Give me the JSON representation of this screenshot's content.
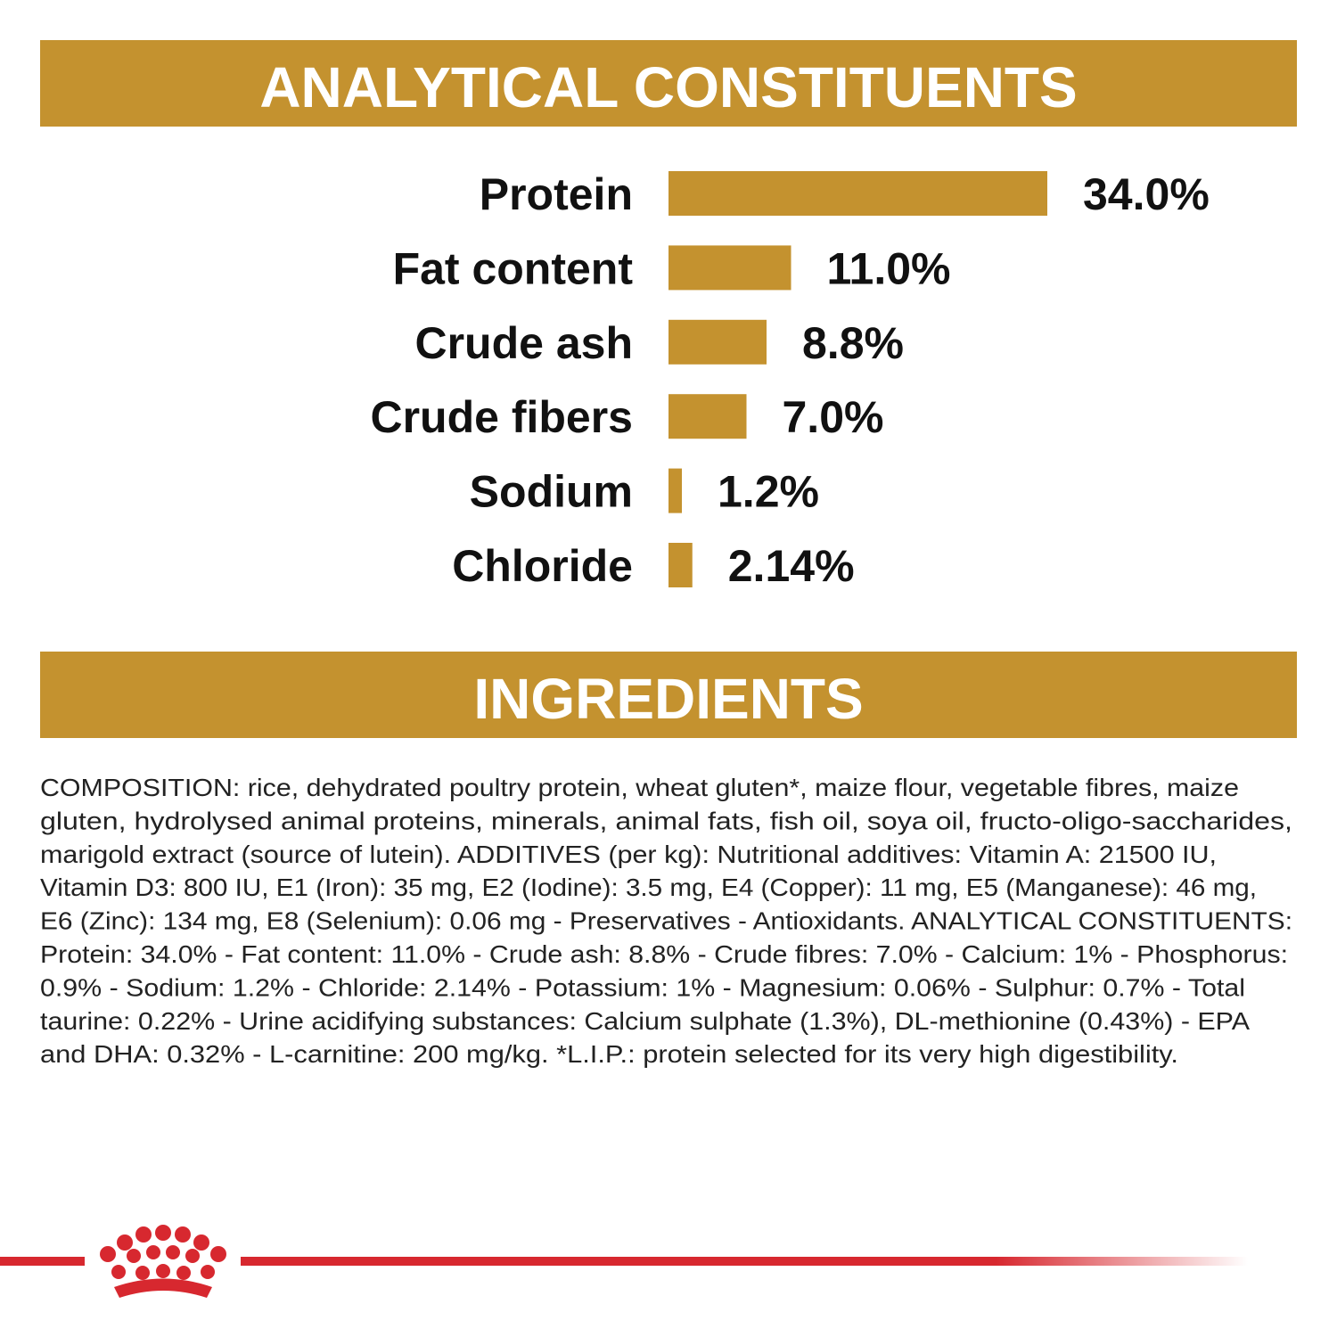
{
  "chart_data": {
    "type": "bar",
    "title": "ANALYTICAL CONSTITUENTS",
    "categories": [
      "Protein",
      "Fat content",
      "Crude ash",
      "Crude fibers",
      "Sodium",
      "Chloride"
    ],
    "values": [
      34.0,
      11.0,
      8.8,
      7.0,
      1.2,
      2.14
    ],
    "value_labels": [
      "34.0%",
      "11.0%",
      "8.8%",
      "7.0%",
      "1.2%",
      "2.14%"
    ],
    "color": "#c4922f"
  },
  "ingredients": {
    "title": "INGREDIENTS",
    "lines": [
      "COMPOSITION: rice, dehydrated poultry protein, wheat gluten*, maize flour, vegetable fibres, maize",
      "gluten, hydrolysed animal proteins, minerals, animal fats, fish oil, soya oil, fructo-oligo-saccharides,",
      "marigold extract (source of lutein). ADDITIVES (per kg): Nutritional additives: Vitamin A: 21500 IU,",
      "Vitamin D3: 800 IU, E1 (Iron): 35 mg, E2 (Iodine): 3.5 mg, E4 (Copper): 11 mg, E5 (Manganese): 46 mg,",
      "E6 (Zinc): 134 mg, E8 (Selenium): 0.06 mg - Preservatives - Antioxidants. ANALYTICAL CONSTITUENTS:",
      "Protein: 34.0% - Fat content: 11.0% - Crude ash: 8.8% - Crude fibres: 7.0% - Calcium: 1% - Phosphorus:",
      "0.9% - Sodium: 1.2% - Chloride: 2.14% - Potassium: 1% - Magnesium: 0.06% - Sulphur: 0.7% - Total",
      "taurine: 0.22% - Urine acidifying substances: Calcium sulphate (1.3%), DL-methionine (0.43%) - EPA",
      "and DHA: 0.32% - L-carnitine: 200 mg/kg. *L.I.P.: protein selected for its very high digestibility."
    ]
  }
}
